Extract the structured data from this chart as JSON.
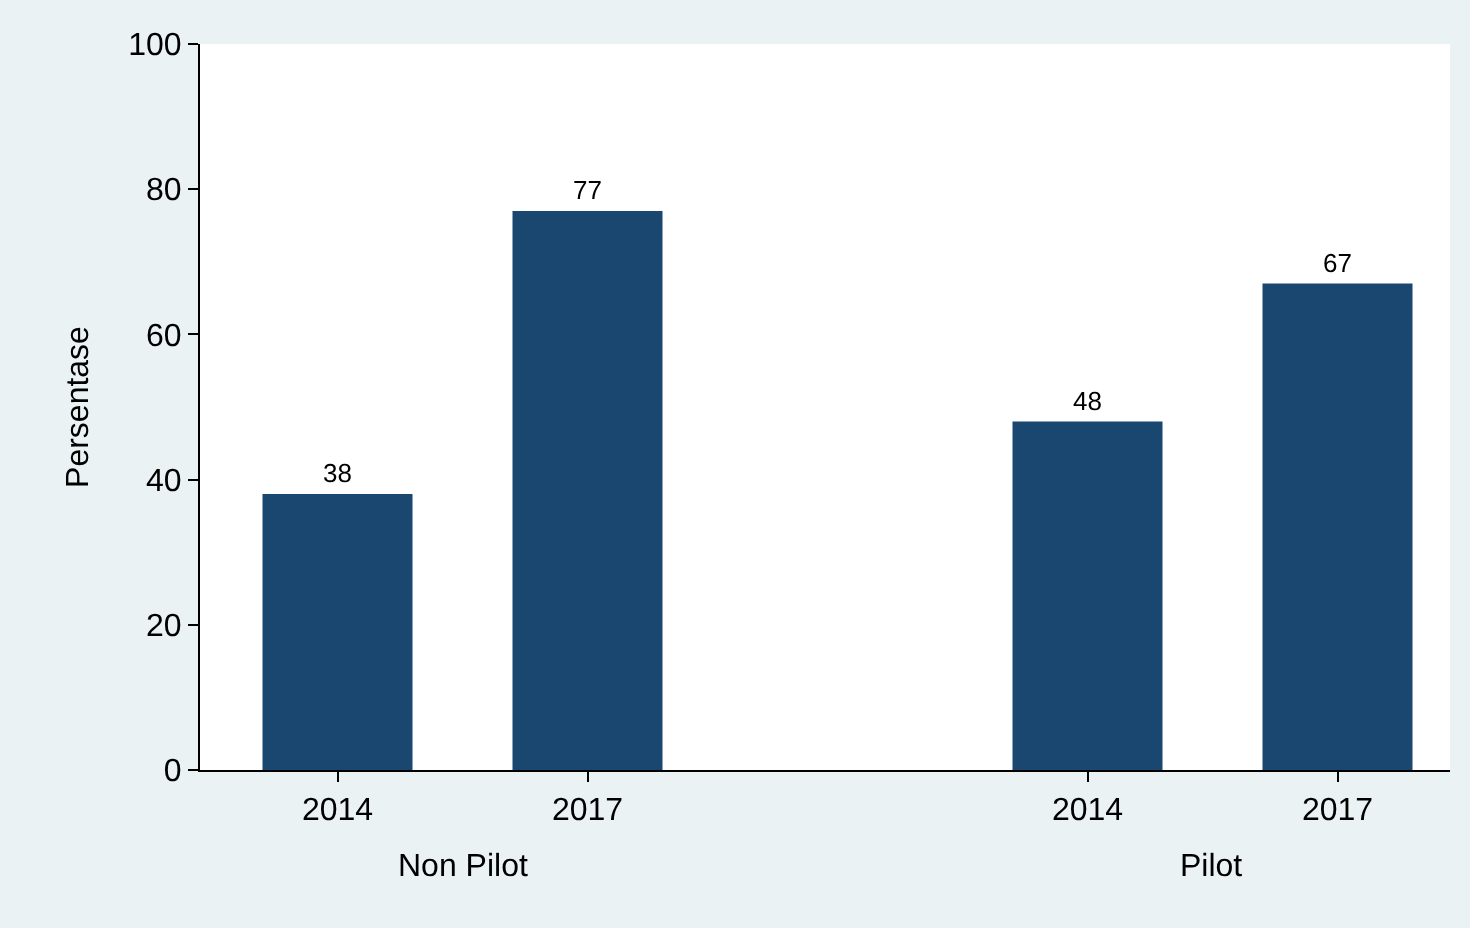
{
  "chart_data": {
    "type": "bar",
    "ylabel": "Persentase",
    "categories": [
      "2014",
      "2017",
      null,
      "2014",
      "2017"
    ],
    "values": [
      38,
      77,
      null,
      48,
      67
    ],
    "color": "#1a476f",
    "ylim": [
      0,
      100
    ],
    "yticks": [
      0,
      20,
      40,
      60,
      80,
      100
    ],
    "data_labels": true,
    "legend": false,
    "annotations": [
      "Non Pilot",
      "Pilot"
    ]
  }
}
